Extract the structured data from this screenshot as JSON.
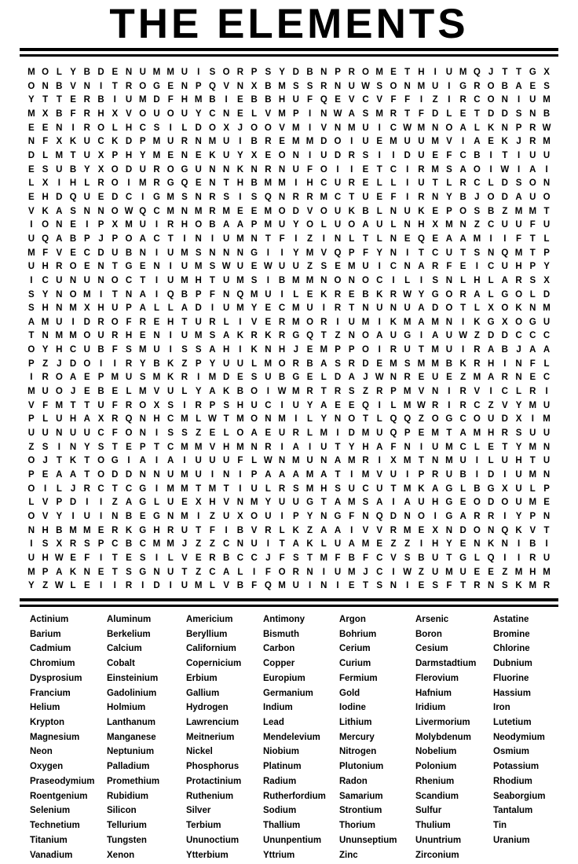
{
  "title": "THE ELEMENTS",
  "colors": {
    "ink": "#000000",
    "paper": "#ffffff"
  },
  "puzzle": {
    "rows": 38,
    "cols": 38,
    "grid_rows": [
      "MOLYBDENUMMUISORPSYDBNPROMETHIUMQJTTGX",
      "ONBVNITROGENPQVNXBMSSRNUWSONMUIGROBAES",
      "YTTERBIUMDFHMBIEBBHUFQEVCVFFIZIRCONIUM",
      "MXBFRHXVOUOUYCNELVMPINWASMRTFDLETDDSNB",
      "EENIROLHCSILDOXJOOVMIVNMUICWMNOALKNPRW",
      "NFXKUCKDPMURNMUIBREMMDOIUEMUUMVIAEKJRM",
      "DLMTUXPHYMENEKUYXEONIUDRSIIDUEFCBITIUU",
      "ESUBYXODUROGUNNKNRNUFOIIETCIRMSAOIWIAI",
      "LXIHLROIMRGQENTHBMMIHCURELLIUTLRCLDSON",
      "EHDQUEDCIGMSNRSISQNRRMCTUEFIRNYBJODAUO",
      "VKASNNOWQCMNMRMEEMODVOUKBLNUKEPOSBZMMT",
      "IONEIPXMUIRHOBAAPMUYOLUOAULNHXMNZCUUFU",
      "UQABPJPOACTINIUMNTFIZINLTLNEQEAAMIIFTL",
      "MFVECDUBNIUMSNNNGIIYMVQPFYNITCUTSNQMTP",
      "UHROENTGENIUMSWUEWUUZSEMUICNARFEICUHPY",
      "ICUNUNOCTIUMHTUMSIBMMNONOCILISNLHLARSX",
      "SYNOMITNAIQBPFNQMUILEKREBKRWYGORALGOLD",
      "SHNMXHUPALLADIUMYECMUIRTNUNUADOTLXOKNM",
      "AMUIDROFREHTURLIVERMORIUMIKMAMNIKGXOGU",
      "TNMMOURHENIUMSAKRKRGQTZNOAUGIAUWZDDCCC",
      "OYHCUBFSMUISSAHIKNHJEMPPOIRUTMUIRABJAA",
      "PZJDOIIRYBKZPYUULMORBASRDEMSMMBKRHINFL",
      "IROAEPMUSMKRIMDESUBGELDAJWNREUEZMARNEC",
      "MUOJEBELMVULYAKBOIWMRTRSZRPMVNIRVICLRI",
      "VFMTTUFROXSIRPSHUCIUYAEEQILMWRIRCZVYMU",
      "PLUHAXRQNHCMLWTMONMILYNOTLQQZOGCOUDXIM",
      "UUNUUCFONISSZELOAEURLMIDMUQPEMTAMHRSUU",
      "ZSINYSTEPTCMMVHMNRIAIUTYHAFNIUMCLETYMN",
      "OJTKTOGIAIAIUUUFLWNMUNAMRIXMTNMUILUHTU",
      "PEAATODDNNUMUINIPAAAMATIMVUIPRUBIDIUMN",
      "OILJRCTCGIMMTMTIULRSMHSUCUTMKAGLBGXULP",
      "LVPDIIZAGLUEXHVNMYUUGTAMSAIAUHGEODOUME",
      "OVYIUINBEGNMIZUXOUIPYNGFNQDNOIGARRIYPN",
      "NHBMMERKGHRUTFIBVRLKZAAIVVRMEXNDONQKVT",
      "ISXRSPCBCMMJZZCNUITAKLUAMEZZIHYENKNIBI",
      "UHWEFITESILVERBCCJFSTMFBFCVSBUTGLQIIRU",
      "MPAKNETSGNUTZCALIFORNIUMJCIWZUMUEEZMHM",
      "YZWLEIIRIDIUMLVBFQMUINIETSNIESFTRNSKMR"
    ]
  },
  "word_list": {
    "columns": 7,
    "words": [
      "Actinium",
      "Aluminum",
      "Americium",
      "Antimony",
      "Argon",
      "Arsenic",
      "Astatine",
      "Barium",
      "Berkelium",
      "Beryllium",
      "Bismuth",
      "Bohrium",
      "Boron",
      "Bromine",
      "Cadmium",
      "Calcium",
      "Californium",
      "Carbon",
      "Cerium",
      "Cesium",
      "Chlorine",
      "Chromium",
      "Cobalt",
      "Copernicium",
      "Copper",
      "Curium",
      "Darmstadtium",
      "Dubnium",
      "Dysprosium",
      "Einsteinium",
      "Erbium",
      "Europium",
      "Fermium",
      "Flerovium",
      "Fluorine",
      "Francium",
      "Gadolinium",
      "Gallium",
      "Germanium",
      "Gold",
      "Hafnium",
      "Hassium",
      "Helium",
      "Holmium",
      "Hydrogen",
      "Indium",
      "Iodine",
      "Iridium",
      "Iron",
      "Krypton",
      "Lanthanum",
      "Lawrencium",
      "Lead",
      "Lithium",
      "Livermorium",
      "Lutetium",
      "Magnesium",
      "Manganese",
      "Meitnerium",
      "Mendelevium",
      "Mercury",
      "Molybdenum",
      "Neodymium",
      "Neon",
      "Neptunium",
      "Nickel",
      "Niobium",
      "Nitrogen",
      "Nobelium",
      "Osmium",
      "Oxygen",
      "Palladium",
      "Phosphorus",
      "Platinum",
      "Plutonium",
      "Polonium",
      "Potassium",
      "Praseodymium",
      "Promethium",
      "Protactinium",
      "Radium",
      "Radon",
      "Rhenium",
      "Rhodium",
      "Roentgenium",
      "Rubidium",
      "Ruthenium",
      "Rutherfordium",
      "Samarium",
      "Scandium",
      "Seaborgium",
      "Selenium",
      "Silicon",
      "Silver",
      "Sodium",
      "Strontium",
      "Sulfur",
      "Tantalum",
      "Technetium",
      "Tellurium",
      "Terbium",
      "Thallium",
      "Thorium",
      "Thulium",
      "Tin",
      "Titanium",
      "Tungsten",
      "Ununoctium",
      "Ununpentium",
      "Ununseptium",
      "Ununtrium",
      "Uranium",
      "Vanadium",
      "Xenon",
      "Ytterbium",
      "Yttrium",
      "Zinc",
      "Zirconium"
    ]
  }
}
